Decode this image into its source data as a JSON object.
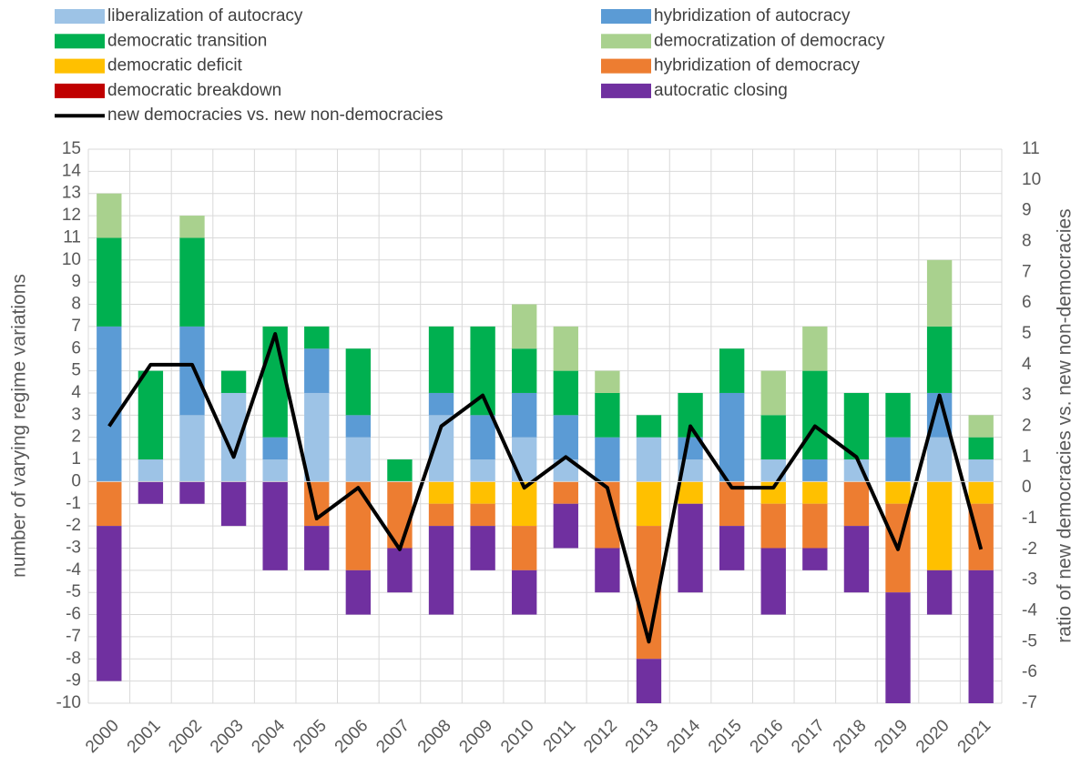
{
  "chart_data": {
    "type": "bar",
    "stacked": true,
    "categories": [
      "2000",
      "2001",
      "2002",
      "2003",
      "2004",
      "2005",
      "2006",
      "2007",
      "2008",
      "2009",
      "2010",
      "2011",
      "2012",
      "2013",
      "2014",
      "2015",
      "2016",
      "2017",
      "2018",
      "2019",
      "2020",
      "2021"
    ],
    "series": [
      {
        "name": "liberalization of autocracy",
        "color": "#9dc3e6",
        "values": [
          0,
          1,
          3,
          4,
          1,
          4,
          2,
          0,
          3,
          1,
          2,
          1,
          0,
          2,
          1,
          0,
          1,
          0,
          1,
          0,
          2,
          1
        ]
      },
      {
        "name": "hybridization of autocracy",
        "color": "#5b9bd5",
        "values": [
          7,
          0,
          4,
          0,
          1,
          2,
          1,
          0,
          1,
          2,
          2,
          2,
          2,
          0,
          1,
          4,
          0,
          1,
          0,
          2,
          2,
          0
        ]
      },
      {
        "name": "democratic transition",
        "color": "#00b050",
        "values": [
          4,
          4,
          4,
          1,
          5,
          1,
          3,
          1,
          3,
          4,
          2,
          2,
          2,
          1,
          2,
          2,
          2,
          4,
          3,
          2,
          3,
          1
        ]
      },
      {
        "name": "democratization of democracy",
        "color": "#a9d18e",
        "values": [
          2,
          0,
          1,
          0,
          0,
          0,
          0,
          0,
          0,
          0,
          2,
          2,
          1,
          0,
          0,
          0,
          2,
          2,
          0,
          0,
          3,
          1
        ]
      },
      {
        "name": "democratic deficit",
        "color": "#ffc000",
        "values": [
          0,
          0,
          0,
          0,
          0,
          0,
          0,
          0,
          -1,
          -1,
          -2,
          0,
          0,
          -2,
          -1,
          0,
          -1,
          -1,
          0,
          -1,
          -4,
          -1
        ]
      },
      {
        "name": "hybridization of democracy",
        "color": "#ed7d31",
        "values": [
          -2,
          0,
          0,
          0,
          0,
          -2,
          -4,
          -3,
          -1,
          -1,
          -2,
          -1,
          -3,
          -6,
          0,
          -2,
          -2,
          -2,
          -2,
          -4,
          0,
          -3
        ]
      },
      {
        "name": "democratic breakdown",
        "color": "#c00000",
        "values": [
          0,
          0,
          0,
          0,
          0,
          0,
          0,
          0,
          0,
          0,
          0,
          0,
          0,
          0,
          0,
          0,
          0,
          0,
          0,
          0,
          0,
          0
        ]
      },
      {
        "name": "autocratic closing",
        "color": "#7030a0",
        "values": [
          -7,
          -1,
          -1,
          -2,
          -4,
          -2,
          -2,
          -2,
          -4,
          -2,
          -2,
          -2,
          -2,
          -2,
          -4,
          -2,
          -3,
          -1,
          -3,
          -5,
          -2,
          -6
        ]
      },
      {
        "name": "new democracies vs. new non-democracies",
        "color": "#000000",
        "type": "line",
        "axis": "y2",
        "values": [
          2,
          4,
          4,
          1,
          5,
          -1,
          0,
          -2,
          2,
          3,
          0,
          1,
          0,
          -5,
          2,
          0,
          0,
          2,
          1,
          -2,
          3,
          -2
        ]
      }
    ],
    "ylabel": "number of varying regime variations",
    "y2label": "ratio of new democracies vs. new non-democracies",
    "ylim": [
      -10,
      15
    ],
    "yticks": [
      -10,
      -9,
      -8,
      -7,
      -6,
      -5,
      -4,
      -3,
      -2,
      -1,
      0,
      1,
      2,
      3,
      4,
      5,
      6,
      7,
      8,
      9,
      10,
      11,
      12,
      13,
      14,
      15
    ],
    "y2lim": [
      -7,
      11
    ],
    "y2ticks": [
      -7,
      -6,
      -5,
      -4,
      -3,
      -2,
      -1,
      0,
      1,
      2,
      3,
      4,
      5,
      6,
      7,
      8,
      9,
      10,
      11
    ],
    "grid": true,
    "legend": "top"
  }
}
